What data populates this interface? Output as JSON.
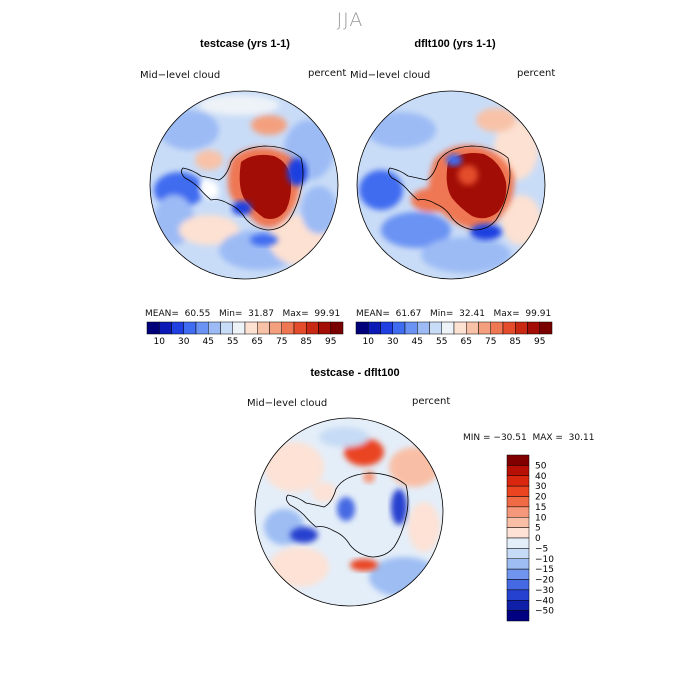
{
  "figure": {
    "title": "JJA"
  },
  "panels": [
    {
      "title": "testcase (yrs 1-1)",
      "field_label": "Mid−level cloud",
      "units": "percent",
      "stats": "MEAN=  60.55   Min=  31.87   Max=  99.91"
    },
    {
      "title": "dflt100 (yrs 1-1)",
      "field_label": "Mid−level cloud",
      "units": "percent",
      "stats": "MEAN=  61.67   Min=  32.41   Max=  99.91"
    },
    {
      "title": "testcase - dflt100",
      "field_label": "Mid−level cloud",
      "units": "percent",
      "stats": "MIN = −30.51  MAX =  30.11"
    }
  ],
  "colorbar_abs": {
    "labels": [
      "10",
      "30",
      "45",
      "55",
      "65",
      "75",
      "85",
      "95"
    ],
    "colors": [
      "#00007a",
      "#0b1ab5",
      "#1f3fe0",
      "#3f6cf0",
      "#6a93f3",
      "#9cbbf5",
      "#c9dcf7",
      "#eef3f8",
      "#fde1d2",
      "#f8c2a8",
      "#f4a07f",
      "#ef7753",
      "#e44d2c",
      "#c92812",
      "#a20e06",
      "#7a0000"
    ]
  },
  "colorbar_diff": {
    "labels": [
      "50",
      "40",
      "30",
      "20",
      "15",
      "10",
      "5",
      "0",
      "−5",
      "−10",
      "−15",
      "−20",
      "−30",
      "−40",
      "−50"
    ],
    "colors": [
      "#800000",
      "#b80f05",
      "#d9260f",
      "#ea4520",
      "#f06a45",
      "#f5977a",
      "#f9bfa6",
      "#fde2d5",
      "#e4eef9",
      "#c6dbf5",
      "#9dbdf3",
      "#6f95ee",
      "#4469e3",
      "#2541cf",
      "#0f1fa8",
      "#000080"
    ]
  },
  "colors": {
    "title_gray": "#9a9a9a",
    "ocean_light_blue": "#c9dcf7",
    "continent_red": "#a20e06"
  }
}
